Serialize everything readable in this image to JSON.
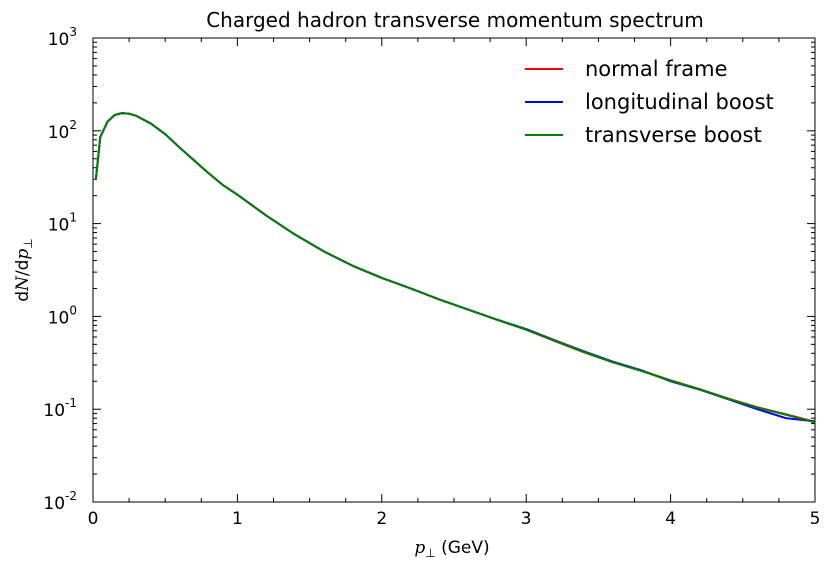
{
  "chart_data": {
    "type": "line",
    "title": "Charged hadron transverse momentum spectrum",
    "xlabel": "p⊥ (GeV)",
    "ylabel": "dN/dp⊥",
    "xlim": [
      0,
      5
    ],
    "ylim": [
      0.01,
      1000
    ],
    "yscale": "log",
    "grid": false,
    "legend_position": "top-right",
    "x_ticks": [
      "0",
      "1",
      "2",
      "3",
      "4",
      "5"
    ],
    "y_ticks": [
      {
        "base": "10",
        "exp": "-2"
      },
      {
        "base": "10",
        "exp": "-1"
      },
      {
        "base": "10",
        "exp": "0"
      },
      {
        "base": "10",
        "exp": "1"
      },
      {
        "base": "10",
        "exp": "2"
      },
      {
        "base": "10",
        "exp": "3"
      }
    ],
    "x": [
      0.02,
      0.05,
      0.1,
      0.15,
      0.2,
      0.25,
      0.3,
      0.4,
      0.5,
      0.6,
      0.7,
      0.8,
      0.9,
      1.0,
      1.2,
      1.4,
      1.6,
      1.8,
      2.0,
      2.2,
      2.4,
      2.6,
      2.8,
      3.0,
      3.2,
      3.4,
      3.6,
      3.8,
      4.0,
      4.2,
      4.4,
      4.6,
      4.8,
      5.0
    ],
    "series": [
      {
        "name": "normal frame",
        "color": "#ff0000",
        "values": [
          30,
          85,
          125,
          148,
          155,
          153,
          145,
          120,
          92,
          66,
          48,
          35,
          26,
          20.5,
          12.2,
          7.6,
          5.0,
          3.5,
          2.6,
          2.0,
          1.52,
          1.18,
          0.92,
          0.72,
          0.54,
          0.41,
          0.32,
          0.26,
          0.205,
          0.165,
          0.13,
          0.105,
          0.088,
          0.073
        ]
      },
      {
        "name": "longitudinal boost",
        "color": "#0000ff",
        "values": [
          30,
          85,
          125,
          148,
          155,
          153,
          145,
          120,
          92,
          66,
          48,
          35,
          26,
          20.5,
          12.2,
          7.6,
          5.0,
          3.5,
          2.6,
          2.0,
          1.52,
          1.18,
          0.92,
          0.73,
          0.55,
          0.42,
          0.325,
          0.262,
          0.2,
          0.163,
          0.128,
          0.1,
          0.08,
          0.074
        ]
      },
      {
        "name": "transverse boost",
        "color": "#008000",
        "values": [
          30,
          85,
          125,
          148,
          155,
          153,
          145,
          120,
          92,
          66,
          48,
          35,
          26,
          20.5,
          12.2,
          7.6,
          5.0,
          3.5,
          2.6,
          2.0,
          1.52,
          1.18,
          0.92,
          0.72,
          0.545,
          0.415,
          0.32,
          0.258,
          0.203,
          0.164,
          0.129,
          0.104,
          0.087,
          0.072
        ]
      }
    ]
  }
}
